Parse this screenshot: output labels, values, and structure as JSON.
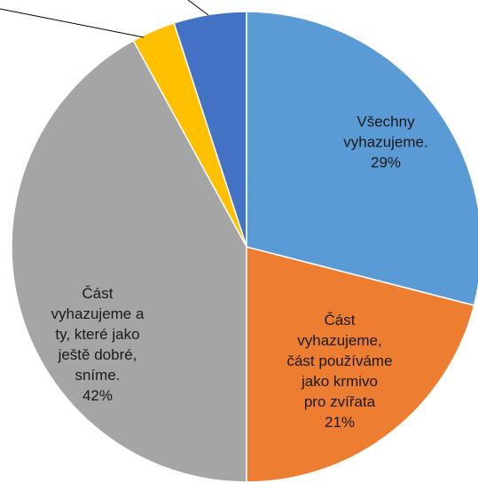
{
  "chart_data": {
    "type": "pie",
    "categories": [
      "Všechny\nvyhazujeme.",
      "Část\nvyhazujeme,\nčást používáme\njako krmivo\npro zvířata",
      "Část\nvyhazujeme a\nty, které jako\nještě dobré,\nsníme.",
      null,
      null
    ],
    "values": [
      29,
      21,
      42,
      3,
      5
    ],
    "value_labels": [
      "29%",
      "21%",
      "42%",
      null,
      null
    ],
    "colors": [
      "#5b9bd5",
      "#ed7d31",
      "#a5a5a5",
      "#ffc000",
      "#4472c4"
    ]
  }
}
